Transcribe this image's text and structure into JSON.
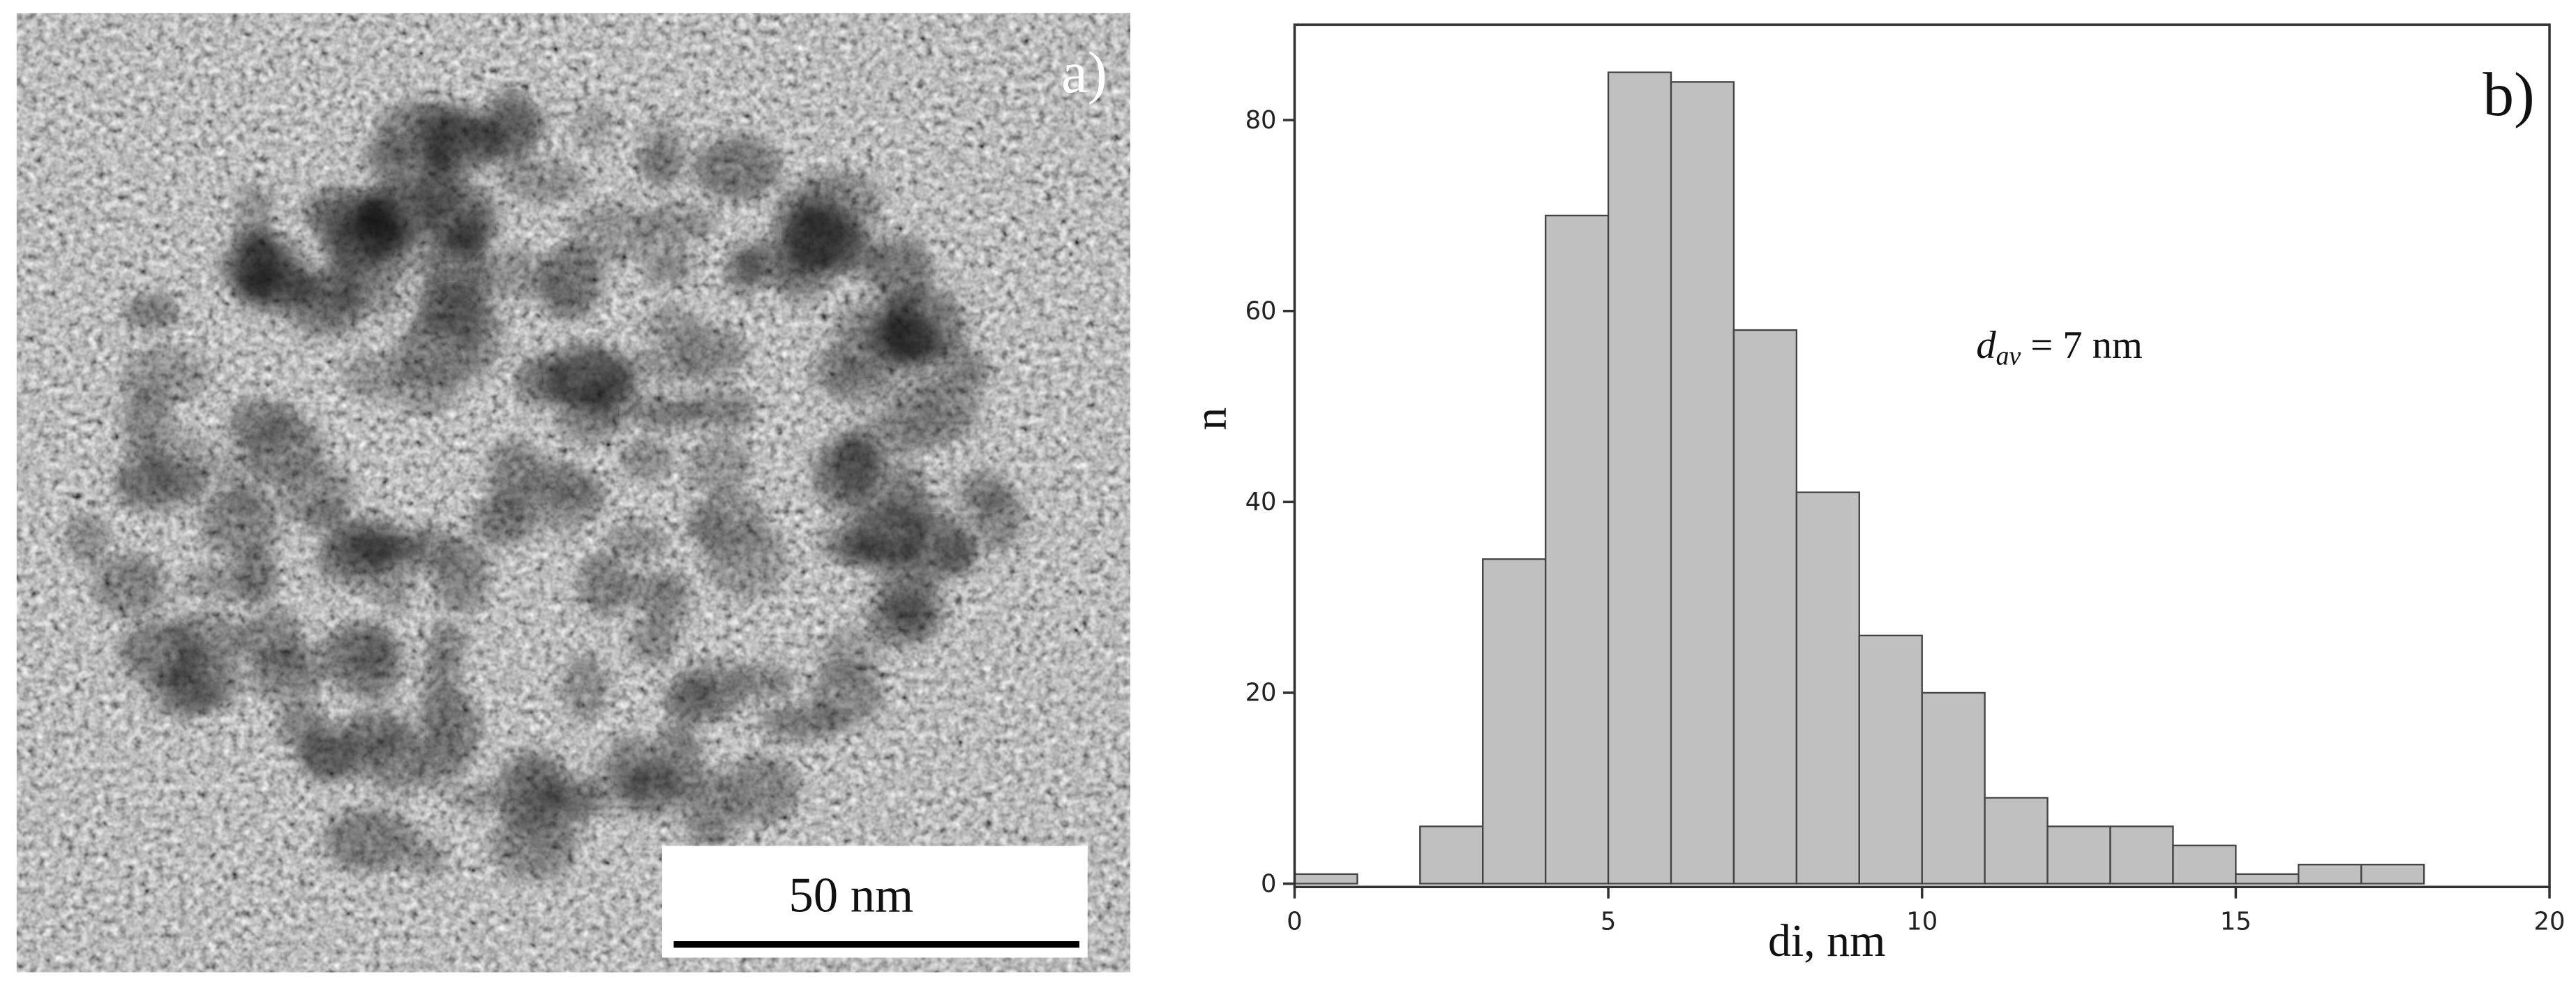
{
  "image_panel": {
    "label": "a)",
    "scale_bar": "50 nm"
  },
  "chart_data": {
    "type": "histogram",
    "label": "b)",
    "bins": [
      0,
      1,
      2,
      3,
      4,
      5,
      6,
      7,
      8,
      9,
      10,
      11,
      12,
      13,
      14,
      15,
      16,
      17,
      18
    ],
    "values": [
      1,
      0,
      6,
      34,
      70,
      85,
      84,
      58,
      41,
      26,
      20,
      9,
      6,
      6,
      4,
      1,
      2,
      2
    ],
    "color": "#c0c0c0",
    "xlabel": "di, nm",
    "ylabel": "n",
    "xlim": [
      0,
      20
    ],
    "xticks": [
      0,
      5,
      10,
      15,
      20
    ],
    "ylim": [
      0,
      90
    ],
    "yticks": [
      0,
      20,
      40,
      60,
      80
    ],
    "annotation": {
      "symbol": "d",
      "subscript": "av",
      "text": "= 7 nm"
    }
  }
}
